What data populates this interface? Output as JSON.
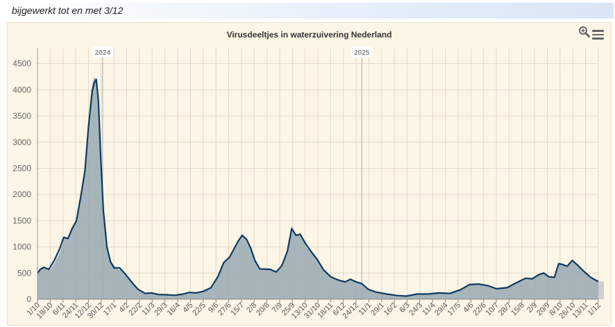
{
  "header": {
    "update_text": "bijgewerkt tot en met 3/12"
  },
  "toolbar": {
    "zoom_icon": "zoom-in-icon",
    "menu_icon": "hamburger-menu-icon"
  },
  "colors": {
    "background": "#fdf5e6",
    "area": "#98a9b2",
    "line": "#0b3a62",
    "grid": "#e3d9c6",
    "year_line": "#aaaaaa"
  },
  "chart_data": {
    "type": "area",
    "title": "Virusdeeltjes in waterzuivering Nederland",
    "xlabel": "",
    "ylabel": "",
    "ylim": [
      0,
      4800
    ],
    "yticks": [
      0,
      500,
      1000,
      1500,
      2000,
      2500,
      3000,
      3500,
      4000,
      4500
    ],
    "grid": true,
    "x_start": "2023-10-01",
    "x_end": "2025-12-01",
    "x_ticks": [
      {
        "date": "2023-10-01",
        "label": "1/10"
      },
      {
        "date": "2023-10-19",
        "label": "19/10"
      },
      {
        "date": "2023-11-06",
        "label": "6/11"
      },
      {
        "date": "2023-11-24",
        "label": "24/11"
      },
      {
        "date": "2023-12-12",
        "label": "12/12"
      },
      {
        "date": "2023-12-30",
        "label": "30/12"
      },
      {
        "date": "2024-01-17",
        "label": "17/1"
      },
      {
        "date": "2024-02-04",
        "label": "4/2"
      },
      {
        "date": "2024-02-22",
        "label": "22/2"
      },
      {
        "date": "2024-03-11",
        "label": "11/3"
      },
      {
        "date": "2024-03-29",
        "label": "29/3"
      },
      {
        "date": "2024-04-16",
        "label": "16/4"
      },
      {
        "date": "2024-05-04",
        "label": "4/5"
      },
      {
        "date": "2024-05-22",
        "label": "22/5"
      },
      {
        "date": "2024-06-09",
        "label": "9/6"
      },
      {
        "date": "2024-06-27",
        "label": "27/6"
      },
      {
        "date": "2024-07-15",
        "label": "15/7"
      },
      {
        "date": "2024-08-02",
        "label": "2/8"
      },
      {
        "date": "2024-08-20",
        "label": "20/8"
      },
      {
        "date": "2024-09-07",
        "label": "7/9"
      },
      {
        "date": "2024-09-25",
        "label": "25/9"
      },
      {
        "date": "2024-10-13",
        "label": "13/10"
      },
      {
        "date": "2024-10-31",
        "label": "31/10"
      },
      {
        "date": "2024-11-18",
        "label": "18/11"
      },
      {
        "date": "2024-12-06",
        "label": "6/12"
      },
      {
        "date": "2024-12-24",
        "label": "24/12"
      },
      {
        "date": "2025-01-11",
        "label": "11/1"
      },
      {
        "date": "2025-01-29",
        "label": "29/1"
      },
      {
        "date": "2025-02-16",
        "label": "16/2"
      },
      {
        "date": "2025-03-06",
        "label": "6/3"
      },
      {
        "date": "2025-03-24",
        "label": "24/3"
      },
      {
        "date": "2025-04-11",
        "label": "11/4"
      },
      {
        "date": "2025-04-29",
        "label": "29/4"
      },
      {
        "date": "2025-05-17",
        "label": "17/5"
      },
      {
        "date": "2025-06-04",
        "label": "4/6"
      },
      {
        "date": "2025-06-22",
        "label": "22/6"
      },
      {
        "date": "2025-07-10",
        "label": "10/7"
      },
      {
        "date": "2025-07-28",
        "label": "28/7"
      },
      {
        "date": "2025-08-15",
        "label": "15/8"
      },
      {
        "date": "2025-09-02",
        "label": "2/9"
      },
      {
        "date": "2025-09-20",
        "label": "20/9"
      },
      {
        "date": "2025-10-08",
        "label": "8/10"
      },
      {
        "date": "2025-10-26",
        "label": "26/10"
      },
      {
        "date": "2025-11-13",
        "label": "13/11"
      },
      {
        "date": "2025-12-01",
        "label": "1/12"
      }
    ],
    "plot_bands": [
      {
        "date": "2024-01-01",
        "label": "2024"
      },
      {
        "date": "2025-01-01",
        "label": "2025"
      }
    ],
    "series": [
      {
        "type": "area",
        "points": [
          [
            "2023-10-01",
            490
          ],
          [
            "2023-10-06",
            560
          ],
          [
            "2023-10-12",
            620
          ],
          [
            "2023-10-19",
            560
          ],
          [
            "2023-10-26",
            720
          ],
          [
            "2023-11-02",
            900
          ],
          [
            "2023-11-08",
            1180
          ],
          [
            "2023-11-13",
            1150
          ],
          [
            "2023-11-20",
            1400
          ],
          [
            "2023-11-26",
            1550
          ],
          [
            "2023-12-01",
            1950
          ],
          [
            "2023-12-06",
            2400
          ],
          [
            "2023-12-11",
            3200
          ],
          [
            "2023-12-16",
            4000
          ],
          [
            "2023-12-20",
            4250
          ],
          [
            "2023-12-23",
            4180
          ],
          [
            "2023-12-26",
            3700
          ],
          [
            "2023-12-30",
            2600
          ],
          [
            "2024-01-03",
            1600
          ],
          [
            "2024-01-08",
            950
          ],
          [
            "2024-01-13",
            720
          ],
          [
            "2024-01-20",
            600
          ],
          [
            "2024-01-26",
            560
          ],
          [
            "2024-02-03",
            470
          ],
          [
            "2024-02-12",
            300
          ],
          [
            "2024-02-20",
            180
          ],
          [
            "2024-03-01",
            110
          ],
          [
            "2024-03-10",
            130
          ],
          [
            "2024-03-20",
            80
          ],
          [
            "2024-04-01",
            90
          ],
          [
            "2024-04-12",
            70
          ],
          [
            "2024-04-24",
            100
          ],
          [
            "2024-05-02",
            140
          ],
          [
            "2024-05-12",
            120
          ],
          [
            "2024-05-22",
            150
          ],
          [
            "2024-06-02",
            220
          ],
          [
            "2024-06-12",
            450
          ],
          [
            "2024-06-20",
            720
          ],
          [
            "2024-06-28",
            800
          ],
          [
            "2024-07-04",
            950
          ],
          [
            "2024-07-10",
            1100
          ],
          [
            "2024-07-16",
            1230
          ],
          [
            "2024-07-22",
            1150
          ],
          [
            "2024-07-28",
            1000
          ],
          [
            "2024-08-03",
            750
          ],
          [
            "2024-08-10",
            580
          ],
          [
            "2024-08-25",
            570
          ],
          [
            "2024-09-02",
            520
          ],
          [
            "2024-09-10",
            650
          ],
          [
            "2024-09-18",
            950
          ],
          [
            "2024-09-24",
            1400
          ],
          [
            "2024-09-30",
            1200
          ],
          [
            "2024-10-06",
            1280
          ],
          [
            "2024-10-14",
            1000
          ],
          [
            "2024-10-22",
            900
          ],
          [
            "2024-10-30",
            750
          ],
          [
            "2024-11-08",
            550
          ],
          [
            "2024-11-18",
            430
          ],
          [
            "2024-11-28",
            380
          ],
          [
            "2024-12-08",
            330
          ],
          [
            "2024-12-16",
            380
          ],
          [
            "2024-12-24",
            320
          ],
          [
            "2025-01-01",
            300
          ],
          [
            "2025-01-10",
            190
          ],
          [
            "2025-01-20",
            140
          ],
          [
            "2025-02-05",
            100
          ],
          [
            "2025-02-20",
            70
          ],
          [
            "2025-03-05",
            60
          ],
          [
            "2025-03-20",
            110
          ],
          [
            "2025-04-05",
            100
          ],
          [
            "2025-04-20",
            120
          ],
          [
            "2025-05-05",
            110
          ],
          [
            "2025-05-20",
            180
          ],
          [
            "2025-06-02",
            280
          ],
          [
            "2025-06-15",
            290
          ],
          [
            "2025-06-28",
            260
          ],
          [
            "2025-07-10",
            200
          ],
          [
            "2025-07-25",
            220
          ],
          [
            "2025-08-08",
            320
          ],
          [
            "2025-08-20",
            410
          ],
          [
            "2025-08-30",
            390
          ],
          [
            "2025-09-08",
            480
          ],
          [
            "2025-09-15",
            520
          ],
          [
            "2025-09-22",
            430
          ],
          [
            "2025-09-30",
            410
          ],
          [
            "2025-10-06",
            700
          ],
          [
            "2025-10-12",
            680
          ],
          [
            "2025-10-18",
            630
          ],
          [
            "2025-10-25",
            760
          ],
          [
            "2025-11-01",
            680
          ],
          [
            "2025-11-10",
            550
          ],
          [
            "2025-11-20",
            420
          ],
          [
            "2025-11-28",
            370
          ],
          [
            "2025-12-01",
            340
          ]
        ]
      },
      {
        "type": "line",
        "points": [
          [
            "2023-10-01",
            500
          ],
          [
            "2023-10-05",
            570
          ],
          [
            "2023-10-10",
            610
          ],
          [
            "2023-10-17",
            570
          ],
          [
            "2023-10-25",
            750
          ],
          [
            "2023-11-01",
            950
          ],
          [
            "2023-11-07",
            1180
          ],
          [
            "2023-11-13",
            1160
          ],
          [
            "2023-11-19",
            1350
          ],
          [
            "2023-11-25",
            1500
          ],
          [
            "2023-12-01",
            1950
          ],
          [
            "2023-12-07",
            2450
          ],
          [
            "2023-12-12",
            3300
          ],
          [
            "2023-12-17",
            3950
          ],
          [
            "2023-12-20",
            4130
          ],
          [
            "2023-12-23",
            4200
          ],
          [
            "2023-12-26",
            3800
          ],
          [
            "2023-12-29",
            2800
          ],
          [
            "2024-01-02",
            1700
          ],
          [
            "2024-01-07",
            1000
          ],
          [
            "2024-01-12",
            720
          ],
          [
            "2024-01-17",
            600
          ],
          [
            "2024-01-25",
            600
          ],
          [
            "2024-02-02",
            480
          ],
          [
            "2024-02-12",
            310
          ],
          [
            "2024-02-20",
            190
          ],
          [
            "2024-03-01",
            110
          ],
          [
            "2024-03-10",
            120
          ],
          [
            "2024-03-20",
            90
          ],
          [
            "2024-04-01",
            85
          ],
          [
            "2024-04-12",
            75
          ],
          [
            "2024-04-24",
            100
          ],
          [
            "2024-05-02",
            130
          ],
          [
            "2024-05-12",
            120
          ],
          [
            "2024-05-22",
            150
          ],
          [
            "2024-06-02",
            220
          ],
          [
            "2024-06-12",
            440
          ],
          [
            "2024-06-20",
            700
          ],
          [
            "2024-06-28",
            800
          ],
          [
            "2024-07-04",
            950
          ],
          [
            "2024-07-10",
            1100
          ],
          [
            "2024-07-16",
            1220
          ],
          [
            "2024-07-22",
            1150
          ],
          [
            "2024-07-28",
            980
          ],
          [
            "2024-08-03",
            740
          ],
          [
            "2024-08-10",
            580
          ],
          [
            "2024-08-25",
            570
          ],
          [
            "2024-09-02",
            520
          ],
          [
            "2024-09-10",
            640
          ],
          [
            "2024-09-18",
            920
          ],
          [
            "2024-09-24",
            1350
          ],
          [
            "2024-09-30",
            1220
          ],
          [
            "2024-10-06",
            1240
          ],
          [
            "2024-10-14",
            1050
          ],
          [
            "2024-10-22",
            900
          ],
          [
            "2024-10-30",
            760
          ],
          [
            "2024-11-08",
            560
          ],
          [
            "2024-11-18",
            430
          ],
          [
            "2024-11-28",
            370
          ],
          [
            "2024-12-08",
            330
          ],
          [
            "2024-12-16",
            380
          ],
          [
            "2024-12-24",
            330
          ],
          [
            "2025-01-01",
            300
          ],
          [
            "2025-01-10",
            190
          ],
          [
            "2025-01-20",
            140
          ],
          [
            "2025-02-05",
            100
          ],
          [
            "2025-02-20",
            70
          ],
          [
            "2025-03-05",
            60
          ],
          [
            "2025-03-20",
            100
          ],
          [
            "2025-04-05",
            100
          ],
          [
            "2025-04-20",
            120
          ],
          [
            "2025-05-05",
            110
          ],
          [
            "2025-05-20",
            180
          ],
          [
            "2025-06-02",
            280
          ],
          [
            "2025-06-15",
            290
          ],
          [
            "2025-06-28",
            260
          ],
          [
            "2025-07-10",
            200
          ],
          [
            "2025-07-25",
            220
          ],
          [
            "2025-08-08",
            320
          ],
          [
            "2025-08-20",
            400
          ],
          [
            "2025-08-30",
            390
          ],
          [
            "2025-09-08",
            470
          ],
          [
            "2025-09-15",
            500
          ],
          [
            "2025-09-22",
            430
          ],
          [
            "2025-09-30",
            420
          ],
          [
            "2025-10-06",
            680
          ],
          [
            "2025-10-12",
            660
          ],
          [
            "2025-10-18",
            630
          ],
          [
            "2025-10-25",
            740
          ],
          [
            "2025-11-01",
            660
          ],
          [
            "2025-11-10",
            540
          ],
          [
            "2025-11-20",
            420
          ],
          [
            "2025-11-28",
            360
          ],
          [
            "2025-12-01",
            340
          ]
        ]
      }
    ]
  }
}
